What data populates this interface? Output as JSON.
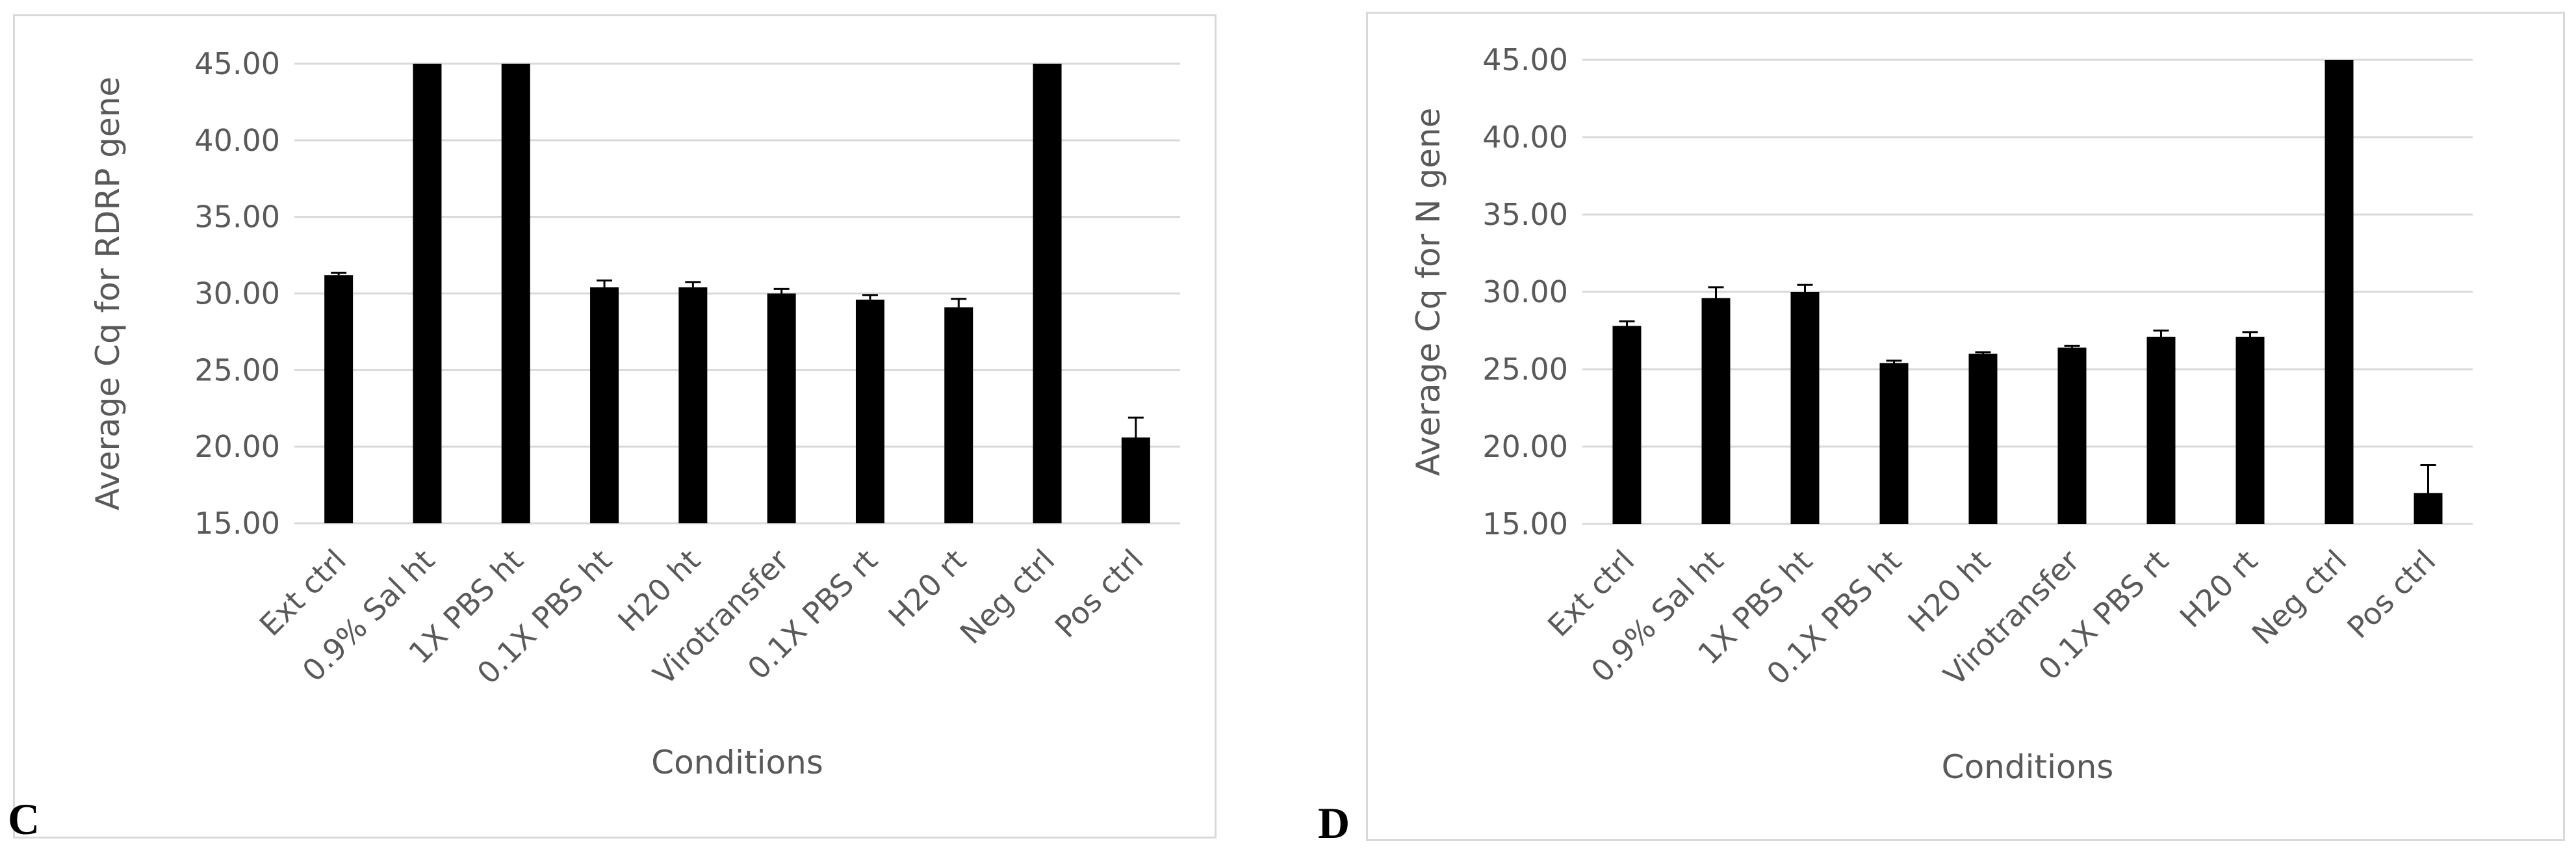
{
  "chart_data": [
    {
      "panel_label": "C",
      "type": "bar",
      "categories": [
        "Ext ctrl",
        "0.9% Sal ht",
        "1X PBS ht",
        "0.1X PBS ht",
        "H20 ht",
        "Virotransfer",
        "0.1X PBS rt",
        "H20 rt",
        "Neg ctrl",
        "Pos ctrl"
      ],
      "values": [
        31.2,
        45.0,
        45.0,
        30.4,
        30.4,
        30.0,
        29.6,
        29.1,
        45.0,
        20.6
      ],
      "errors": [
        0.15,
        0.0,
        0.0,
        0.45,
        0.35,
        0.3,
        0.3,
        0.55,
        0.0,
        1.3
      ],
      "title": "",
      "xlabel": "Conditions",
      "ylabel": "Average Cq for RDRP gene",
      "ylim": [
        15,
        45
      ],
      "yticks": [
        "15.00",
        "20.00",
        "25.00",
        "30.00",
        "35.00",
        "40.00",
        "45.00"
      ],
      "grid": true,
      "bar_color": "#000000"
    },
    {
      "panel_label": "D",
      "type": "bar",
      "categories": [
        "Ext ctrl",
        "0.9% Sal ht",
        "1X PBS ht",
        "0.1X PBS ht",
        "H20 ht",
        "Virotransfer",
        "0.1X PBS rt",
        "H20 rt",
        "Neg ctrl",
        "Pos ctrl"
      ],
      "values": [
        27.8,
        29.6,
        30.0,
        25.4,
        26.0,
        26.4,
        27.1,
        27.1,
        45.0,
        17.0
      ],
      "errors": [
        0.3,
        0.7,
        0.45,
        0.15,
        0.1,
        0.1,
        0.4,
        0.3,
        0.0,
        1.8
      ],
      "title": "",
      "xlabel": "Conditions",
      "ylabel": "Average Cq  for N gene",
      "ylim": [
        15,
        45
      ],
      "yticks": [
        "15.00",
        "20.00",
        "25.00",
        "30.00",
        "35.00",
        "40.00",
        "45.00"
      ],
      "grid": true,
      "bar_color": "#000000"
    }
  ]
}
